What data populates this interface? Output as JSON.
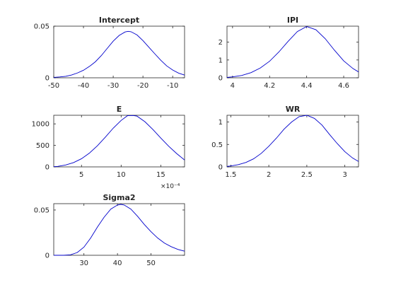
{
  "figure": {
    "background": "#ffffff",
    "line_color": "#0000cc",
    "axis_color": "#262626"
  },
  "chart_data": [
    {
      "type": "line",
      "title": "Intercept",
      "xlim": [
        -50,
        -6
      ],
      "ylim": [
        0,
        0.05
      ],
      "xticks": [
        -50,
        -40,
        -30,
        -20,
        -10
      ],
      "xtick_labels": [
        "-50",
        "-40",
        "-30",
        "-20",
        "-10"
      ],
      "yticks": [
        0,
        0.05
      ],
      "ytick_labels": [
        "0",
        "0.05"
      ],
      "exponent_label": "",
      "series": [
        {
          "x": [
            -50,
            -48,
            -46,
            -44,
            -42,
            -40,
            -38,
            -36,
            -34,
            -32,
            -30,
            -28,
            -26,
            -25,
            -24,
            -22,
            -20,
            -18,
            -16,
            -14,
            -12,
            -10,
            -8,
            -6
          ],
          "y": [
            0.0004,
            0.0008,
            0.0014,
            0.0027,
            0.0047,
            0.0073,
            0.011,
            0.0155,
            0.0215,
            0.0285,
            0.0355,
            0.041,
            0.0444,
            0.045,
            0.0446,
            0.0415,
            0.036,
            0.0296,
            0.0232,
            0.017,
            0.0115,
            0.0075,
            0.0045,
            0.0026
          ]
        }
      ]
    },
    {
      "type": "line",
      "title": "IPI",
      "xlim": [
        3.97,
        4.68
      ],
      "ylim": [
        0,
        2.9
      ],
      "xticks": [
        4,
        4.2,
        4.4,
        4.6
      ],
      "xtick_labels": [
        "4",
        "4.2",
        "4.4",
        "4.6"
      ],
      "yticks": [
        0,
        1,
        2
      ],
      "ytick_labels": [
        "0",
        "1",
        "2"
      ],
      "exponent_label": "",
      "series": [
        {
          "x": [
            3.97,
            4.0,
            4.05,
            4.1,
            4.15,
            4.2,
            4.25,
            4.3,
            4.35,
            4.4,
            4.45,
            4.5,
            4.55,
            4.6,
            4.65,
            4.68
          ],
          "y": [
            0.02,
            0.05,
            0.13,
            0.29,
            0.55,
            0.93,
            1.45,
            2.05,
            2.6,
            2.88,
            2.7,
            2.2,
            1.55,
            0.95,
            0.52,
            0.33
          ]
        }
      ]
    },
    {
      "type": "line",
      "title": "E",
      "xlim": [
        1.5,
        18
      ],
      "ylim": [
        0,
        1200
      ],
      "xticks": [
        5,
        10,
        15
      ],
      "xtick_labels": [
        "5",
        "10",
        "15"
      ],
      "yticks": [
        0,
        500,
        1000
      ],
      "ytick_labels": [
        "0",
        "500",
        "1000"
      ],
      "exponent_label": "×10⁻⁴",
      "series": [
        {
          "x": [
            1.5,
            2,
            3,
            4,
            5,
            6,
            7,
            8,
            9,
            10,
            10.8,
            11.5,
            12,
            13,
            14,
            15,
            16,
            17,
            18
          ],
          "y": [
            5,
            12,
            45,
            100,
            190,
            320,
            490,
            690,
            900,
            1080,
            1190,
            1195,
            1180,
            1050,
            870,
            670,
            480,
            310,
            160
          ]
        }
      ]
    },
    {
      "type": "line",
      "title": "WR",
      "xlim": [
        1.45,
        3.18
      ],
      "ylim": [
        0,
        1.15
      ],
      "xticks": [
        1.5,
        2,
        2.5,
        3
      ],
      "xtick_labels": [
        "1.5",
        "2",
        "2.5",
        "3"
      ],
      "yticks": [
        0,
        0.5,
        1
      ],
      "ytick_labels": [
        "0",
        "0.5",
        "1"
      ],
      "exponent_label": "",
      "series": [
        {
          "x": [
            1.45,
            1.5,
            1.6,
            1.7,
            1.8,
            1.9,
            2.0,
            2.1,
            2.2,
            2.3,
            2.4,
            2.5,
            2.6,
            2.7,
            2.8,
            2.9,
            3.0,
            3.1,
            3.18
          ],
          "y": [
            0.01,
            0.02,
            0.05,
            0.1,
            0.18,
            0.3,
            0.46,
            0.64,
            0.84,
            1.0,
            1.12,
            1.15,
            1.08,
            0.93,
            0.72,
            0.52,
            0.34,
            0.2,
            0.12
          ]
        }
      ]
    },
    {
      "type": "line",
      "title": "Sigma2",
      "xlim": [
        21,
        60
      ],
      "ylim": [
        0,
        0.057
      ],
      "xticks": [
        30,
        40,
        50
      ],
      "xtick_labels": [
        "30",
        "40",
        "50"
      ],
      "yticks": [
        0,
        0.05
      ],
      "ytick_labels": [
        "0",
        "0.05"
      ],
      "exponent_label": "",
      "series": [
        {
          "x": [
            21,
            24,
            26,
            28,
            30,
            32,
            34,
            36,
            38,
            40,
            41,
            42,
            44,
            46,
            48,
            50,
            52,
            54,
            56,
            58,
            60
          ],
          "y": [
            0,
            0,
            0.0005,
            0.003,
            0.009,
            0.019,
            0.031,
            0.042,
            0.051,
            0.0555,
            0.0562,
            0.0555,
            0.051,
            0.043,
            0.034,
            0.026,
            0.019,
            0.0135,
            0.0095,
            0.0065,
            0.0045
          ]
        }
      ]
    }
  ]
}
